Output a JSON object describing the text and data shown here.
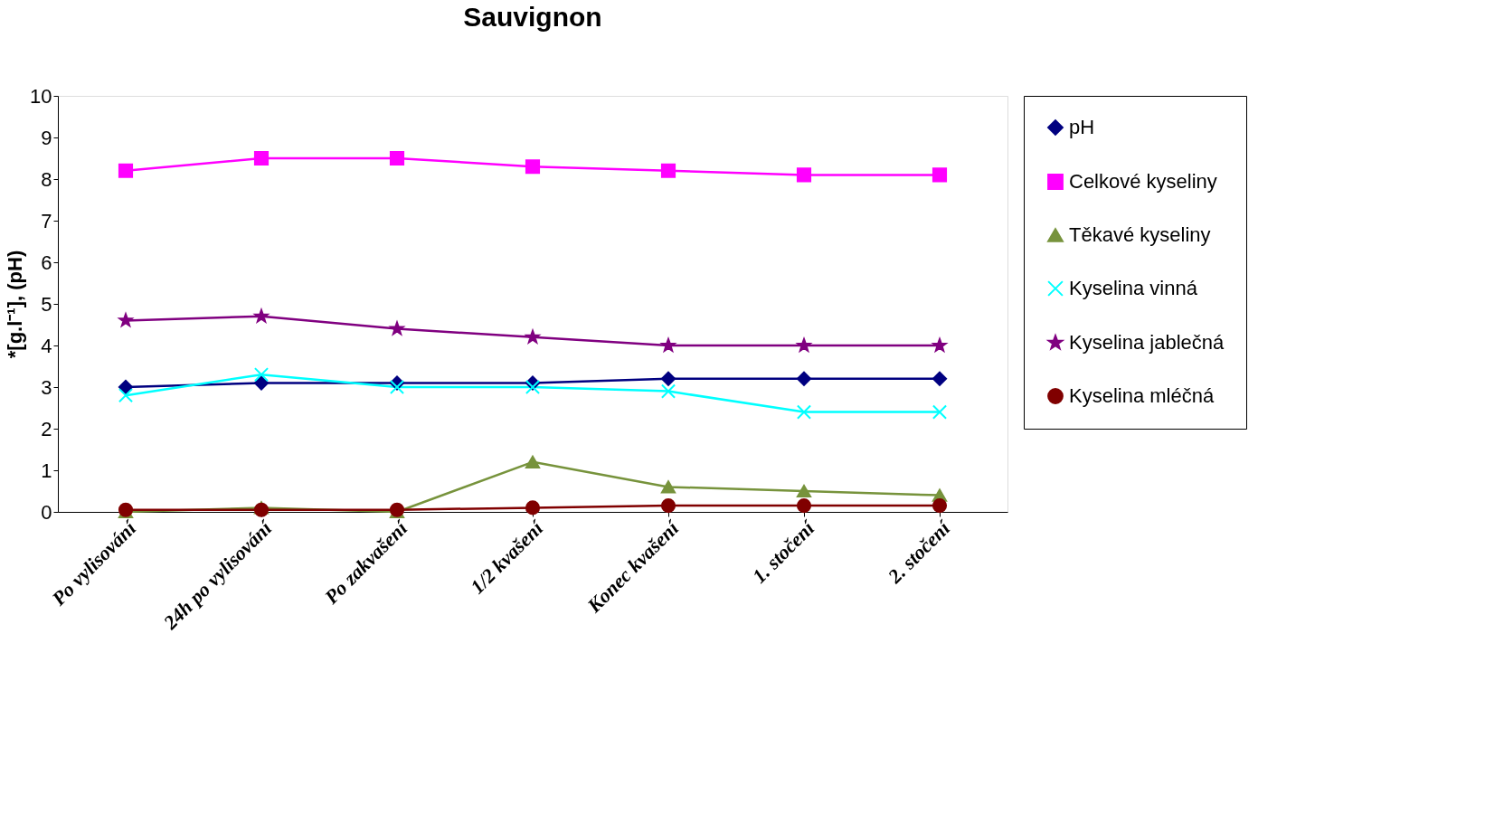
{
  "chart_data": {
    "type": "line",
    "title": "Sauvignon",
    "ylabel": "*[g.l⁻¹], (pH)",
    "categories": [
      "Po vylisování",
      "24h po vylisování",
      "Po zakvašení",
      "1/2 kvašení",
      "Konec kvašení",
      "1. stočení",
      "2. stočení"
    ],
    "ylim": [
      0,
      10
    ],
    "yticks": [
      0,
      1,
      2,
      3,
      4,
      5,
      6,
      7,
      8,
      9,
      10
    ],
    "grid": false,
    "legend": "right",
    "line_style": "solid",
    "series": [
      {
        "name": "pH",
        "color": "#000080",
        "marker": "diamond",
        "values": [
          3.0,
          3.1,
          3.1,
          3.1,
          3.2,
          3.2,
          3.2
        ]
      },
      {
        "name": "Celkové kyseliny",
        "color": "#ff00ff",
        "marker": "square",
        "values": [
          8.2,
          8.5,
          8.5,
          8.3,
          8.2,
          8.1,
          8.1
        ]
      },
      {
        "name": "Těkavé kyseliny",
        "color": "#77933c",
        "marker": "triangle",
        "values": [
          0.0,
          0.1,
          0.0,
          1.2,
          0.6,
          0.5,
          0.4
        ]
      },
      {
        "name": "Kyselina vinná",
        "color": "#00ffff",
        "marker": "cross",
        "values": [
          2.8,
          3.3,
          3.0,
          3.0,
          2.9,
          2.4,
          2.4
        ]
      },
      {
        "name": "Kyselina jablečná",
        "color": "#800080",
        "marker": "star",
        "values": [
          4.6,
          4.7,
          4.4,
          4.2,
          4.0,
          4.0,
          4.0
        ]
      },
      {
        "name": "Kyselina mléčná",
        "color": "#800000",
        "marker": "circle",
        "values": [
          0.05,
          0.05,
          0.05,
          0.1,
          0.15,
          0.15,
          0.15
        ]
      }
    ]
  }
}
